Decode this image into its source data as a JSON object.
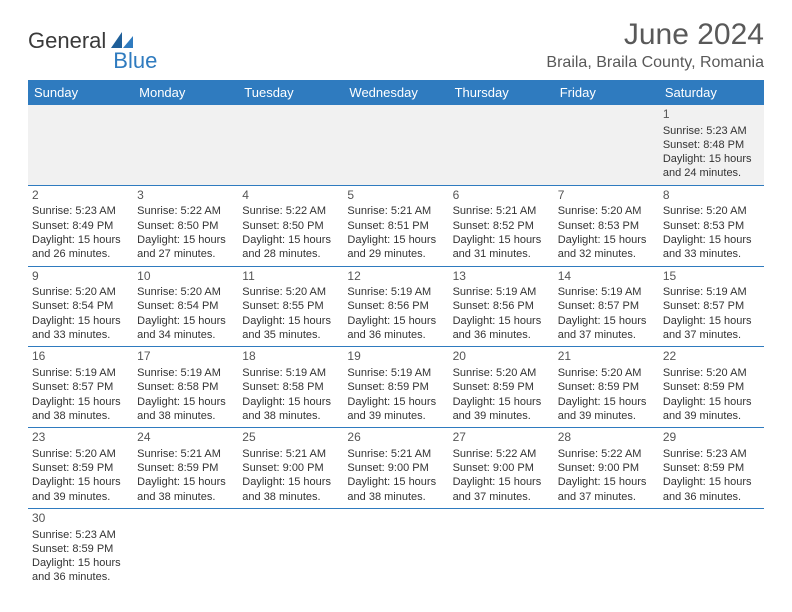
{
  "logo": {
    "text1": "General",
    "text2": "Blue"
  },
  "title": "June 2024",
  "location": "Braila, Braila County, Romania",
  "colors": {
    "header_bg": "#2f7bbf",
    "header_fg": "#ffffff",
    "row_border": "#2f7bbf",
    "firstweek_bg": "#f1f1f1",
    "title_color": "#595959",
    "body_text": "#333333",
    "logo_gray": "#3a3a3a",
    "logo_blue": "#2f7bbf"
  },
  "typography": {
    "title_fontsize": 30,
    "location_fontsize": 16,
    "dayheader_fontsize": 13,
    "cell_fontsize": 11,
    "daynum_fontsize": 12
  },
  "day_headers": [
    "Sunday",
    "Monday",
    "Tuesday",
    "Wednesday",
    "Thursday",
    "Friday",
    "Saturday"
  ],
  "weeks": [
    [
      null,
      null,
      null,
      null,
      null,
      null,
      {
        "n": "1",
        "sr": "Sunrise: 5:23 AM",
        "ss": "Sunset: 8:48 PM",
        "d1": "Daylight: 15 hours",
        "d2": "and 24 minutes."
      }
    ],
    [
      {
        "n": "2",
        "sr": "Sunrise: 5:23 AM",
        "ss": "Sunset: 8:49 PM",
        "d1": "Daylight: 15 hours",
        "d2": "and 26 minutes."
      },
      {
        "n": "3",
        "sr": "Sunrise: 5:22 AM",
        "ss": "Sunset: 8:50 PM",
        "d1": "Daylight: 15 hours",
        "d2": "and 27 minutes."
      },
      {
        "n": "4",
        "sr": "Sunrise: 5:22 AM",
        "ss": "Sunset: 8:50 PM",
        "d1": "Daylight: 15 hours",
        "d2": "and 28 minutes."
      },
      {
        "n": "5",
        "sr": "Sunrise: 5:21 AM",
        "ss": "Sunset: 8:51 PM",
        "d1": "Daylight: 15 hours",
        "d2": "and 29 minutes."
      },
      {
        "n": "6",
        "sr": "Sunrise: 5:21 AM",
        "ss": "Sunset: 8:52 PM",
        "d1": "Daylight: 15 hours",
        "d2": "and 31 minutes."
      },
      {
        "n": "7",
        "sr": "Sunrise: 5:20 AM",
        "ss": "Sunset: 8:53 PM",
        "d1": "Daylight: 15 hours",
        "d2": "and 32 minutes."
      },
      {
        "n": "8",
        "sr": "Sunrise: 5:20 AM",
        "ss": "Sunset: 8:53 PM",
        "d1": "Daylight: 15 hours",
        "d2": "and 33 minutes."
      }
    ],
    [
      {
        "n": "9",
        "sr": "Sunrise: 5:20 AM",
        "ss": "Sunset: 8:54 PM",
        "d1": "Daylight: 15 hours",
        "d2": "and 33 minutes."
      },
      {
        "n": "10",
        "sr": "Sunrise: 5:20 AM",
        "ss": "Sunset: 8:54 PM",
        "d1": "Daylight: 15 hours",
        "d2": "and 34 minutes."
      },
      {
        "n": "11",
        "sr": "Sunrise: 5:20 AM",
        "ss": "Sunset: 8:55 PM",
        "d1": "Daylight: 15 hours",
        "d2": "and 35 minutes."
      },
      {
        "n": "12",
        "sr": "Sunrise: 5:19 AM",
        "ss": "Sunset: 8:56 PM",
        "d1": "Daylight: 15 hours",
        "d2": "and 36 minutes."
      },
      {
        "n": "13",
        "sr": "Sunrise: 5:19 AM",
        "ss": "Sunset: 8:56 PM",
        "d1": "Daylight: 15 hours",
        "d2": "and 36 minutes."
      },
      {
        "n": "14",
        "sr": "Sunrise: 5:19 AM",
        "ss": "Sunset: 8:57 PM",
        "d1": "Daylight: 15 hours",
        "d2": "and 37 minutes."
      },
      {
        "n": "15",
        "sr": "Sunrise: 5:19 AM",
        "ss": "Sunset: 8:57 PM",
        "d1": "Daylight: 15 hours",
        "d2": "and 37 minutes."
      }
    ],
    [
      {
        "n": "16",
        "sr": "Sunrise: 5:19 AM",
        "ss": "Sunset: 8:57 PM",
        "d1": "Daylight: 15 hours",
        "d2": "and 38 minutes."
      },
      {
        "n": "17",
        "sr": "Sunrise: 5:19 AM",
        "ss": "Sunset: 8:58 PM",
        "d1": "Daylight: 15 hours",
        "d2": "and 38 minutes."
      },
      {
        "n": "18",
        "sr": "Sunrise: 5:19 AM",
        "ss": "Sunset: 8:58 PM",
        "d1": "Daylight: 15 hours",
        "d2": "and 38 minutes."
      },
      {
        "n": "19",
        "sr": "Sunrise: 5:19 AM",
        "ss": "Sunset: 8:59 PM",
        "d1": "Daylight: 15 hours",
        "d2": "and 39 minutes."
      },
      {
        "n": "20",
        "sr": "Sunrise: 5:20 AM",
        "ss": "Sunset: 8:59 PM",
        "d1": "Daylight: 15 hours",
        "d2": "and 39 minutes."
      },
      {
        "n": "21",
        "sr": "Sunrise: 5:20 AM",
        "ss": "Sunset: 8:59 PM",
        "d1": "Daylight: 15 hours",
        "d2": "and 39 minutes."
      },
      {
        "n": "22",
        "sr": "Sunrise: 5:20 AM",
        "ss": "Sunset: 8:59 PM",
        "d1": "Daylight: 15 hours",
        "d2": "and 39 minutes."
      }
    ],
    [
      {
        "n": "23",
        "sr": "Sunrise: 5:20 AM",
        "ss": "Sunset: 8:59 PM",
        "d1": "Daylight: 15 hours",
        "d2": "and 39 minutes."
      },
      {
        "n": "24",
        "sr": "Sunrise: 5:21 AM",
        "ss": "Sunset: 8:59 PM",
        "d1": "Daylight: 15 hours",
        "d2": "and 38 minutes."
      },
      {
        "n": "25",
        "sr": "Sunrise: 5:21 AM",
        "ss": "Sunset: 9:00 PM",
        "d1": "Daylight: 15 hours",
        "d2": "and 38 minutes."
      },
      {
        "n": "26",
        "sr": "Sunrise: 5:21 AM",
        "ss": "Sunset: 9:00 PM",
        "d1": "Daylight: 15 hours",
        "d2": "and 38 minutes."
      },
      {
        "n": "27",
        "sr": "Sunrise: 5:22 AM",
        "ss": "Sunset: 9:00 PM",
        "d1": "Daylight: 15 hours",
        "d2": "and 37 minutes."
      },
      {
        "n": "28",
        "sr": "Sunrise: 5:22 AM",
        "ss": "Sunset: 9:00 PM",
        "d1": "Daylight: 15 hours",
        "d2": "and 37 minutes."
      },
      {
        "n": "29",
        "sr": "Sunrise: 5:23 AM",
        "ss": "Sunset: 8:59 PM",
        "d1": "Daylight: 15 hours",
        "d2": "and 36 minutes."
      }
    ],
    [
      {
        "n": "30",
        "sr": "Sunrise: 5:23 AM",
        "ss": "Sunset: 8:59 PM",
        "d1": "Daylight: 15 hours",
        "d2": "and 36 minutes."
      },
      null,
      null,
      null,
      null,
      null,
      null
    ]
  ]
}
